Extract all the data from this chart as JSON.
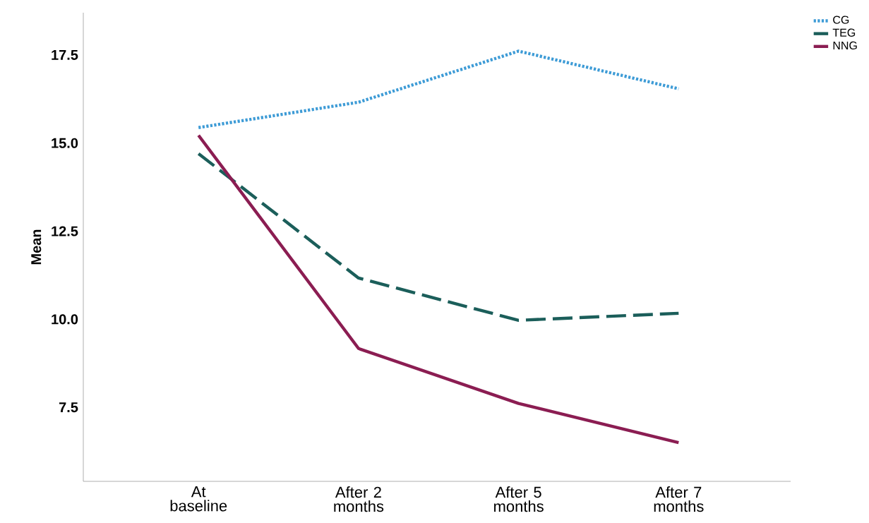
{
  "chart_data": {
    "type": "line",
    "ylabel": "Mean",
    "categories": [
      "At baseline",
      "After 2 months",
      "After 5 months",
      "After 7 months"
    ],
    "series": [
      {
        "name": "CG",
        "color": "#3d9bd6",
        "line_style": "dotted",
        "values": [
          15.44,
          16.16,
          17.61,
          16.54
        ]
      },
      {
        "name": "TEG",
        "color": "#1b5e5a",
        "line_style": "dashed",
        "values": [
          14.7,
          11.17,
          9.97,
          10.17
        ]
      },
      {
        "name": "NNG",
        "color": "#8b1d52",
        "line_style": "solid",
        "values": [
          15.22,
          9.17,
          7.61,
          6.5
        ]
      }
    ],
    "ylim": [
      5.4,
      18.7
    ],
    "yticks": [
      7.5,
      {
        "value": 10,
        "label": "10.0"
      },
      12.5,
      {
        "value": 15,
        "label": "15.0"
      },
      17.5
    ],
    "grid": false,
    "legend": "top right",
    "marker": "none"
  }
}
